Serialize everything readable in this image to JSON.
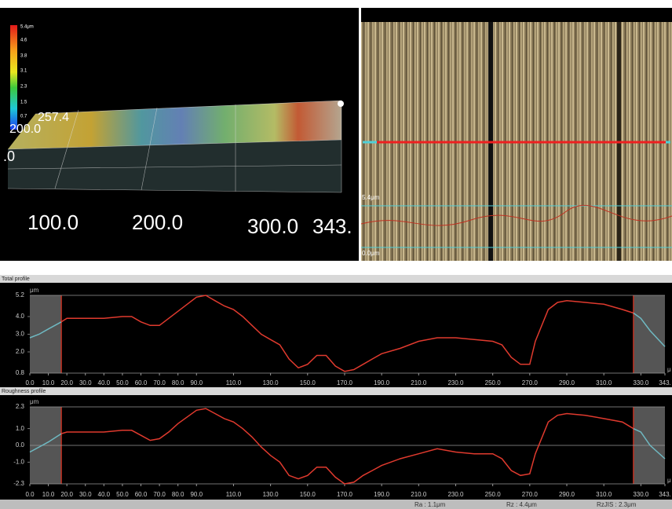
{
  "view3d": {
    "scale_labels": [
      "5.4μm",
      "4.6",
      "3.8",
      "3.1",
      "2.3",
      "1.5",
      "0.7"
    ],
    "axis_labels": [
      "257.4",
      "200.0",
      ".0",
      "100.0",
      "200.0",
      "300.0",
      "343."
    ]
  },
  "image": {
    "labels": [
      "5.4μm",
      "0.0μm"
    ]
  },
  "chart_data": [
    {
      "type": "line",
      "title": "Total profile",
      "ylabel": "μm",
      "xlabel": "μ",
      "x": [
        0,
        5,
        10,
        17,
        20,
        30,
        40,
        50,
        55,
        60,
        65,
        70,
        75,
        80,
        85,
        90,
        95,
        100,
        105,
        110,
        115,
        120,
        125,
        130,
        135,
        140,
        145,
        150,
        155,
        160,
        165,
        170,
        175,
        180,
        185,
        190,
        200,
        210,
        220,
        230,
        240,
        250,
        255,
        260,
        265,
        270,
        273,
        280,
        285,
        290,
        300,
        310,
        320,
        326,
        330,
        335,
        343
      ],
      "series": [
        {
          "color": "#e03a2e",
          "values": [
            2.8,
            3.0,
            3.3,
            3.7,
            3.9,
            3.9,
            3.9,
            4.0,
            4.0,
            3.7,
            3.5,
            3.5,
            3.9,
            4.3,
            4.7,
            5.1,
            5.2,
            4.9,
            4.6,
            4.4,
            4.0,
            3.5,
            3.0,
            2.7,
            2.4,
            1.6,
            1.1,
            1.3,
            1.8,
            1.8,
            1.2,
            0.9,
            1.0,
            1.3,
            1.6,
            1.9,
            2.2,
            2.6,
            2.8,
            2.8,
            2.7,
            2.6,
            2.4,
            1.7,
            1.3,
            1.3,
            2.6,
            4.4,
            4.8,
            4.9,
            4.8,
            4.7,
            4.4,
            4.2,
            3.9,
            3.2,
            2.3
          ]
        }
      ],
      "cutoff": [
        17,
        326
      ],
      "cutoff_color": "#6fb9c2",
      "xlim": [
        0,
        343
      ],
      "ylim": [
        0.8,
        5.2
      ],
      "yticks": [
        {
          "value": 5.2,
          "label": "5.2"
        },
        {
          "value": 4.0,
          "label": "4.0"
        },
        {
          "value": 3.0,
          "label": "3.0"
        },
        {
          "value": 2.0,
          "label": "2.0"
        },
        {
          "value": 0.8,
          "label": "0.8"
        }
      ],
      "xticks": [
        {
          "value": 0,
          "label": "0.0"
        },
        {
          "value": 10,
          "label": "10.0"
        },
        {
          "value": 20,
          "label": "20.0"
        },
        {
          "value": 30,
          "label": "30.0"
        },
        {
          "value": 40,
          "label": "40.0"
        },
        {
          "value": 50,
          "label": "50.0"
        },
        {
          "value": 60,
          "label": "60.0"
        },
        {
          "value": 70,
          "label": "70.0"
        },
        {
          "value": 80,
          "label": "80.0"
        },
        {
          "value": 90,
          "label": "90.0"
        },
        {
          "value": 110,
          "label": "110.0"
        },
        {
          "value": 130,
          "label": "130.0"
        },
        {
          "value": 150,
          "label": "150.0"
        },
        {
          "value": 170,
          "label": "170.0"
        },
        {
          "value": 190,
          "label": "190.0"
        },
        {
          "value": 210,
          "label": "210.0"
        },
        {
          "value": 230,
          "label": "230.0"
        },
        {
          "value": 250,
          "label": "250.0"
        },
        {
          "value": 270,
          "label": "270.0"
        },
        {
          "value": 290,
          "label": "290.0"
        },
        {
          "value": 310,
          "label": "310.0"
        },
        {
          "value": 330,
          "label": "330.0"
        },
        {
          "value": 343,
          "label": "343."
        }
      ]
    },
    {
      "type": "line",
      "title": "Roughness profile",
      "ylabel": "μm",
      "xlabel": "μ",
      "x": [
        0,
        5,
        10,
        17,
        20,
        30,
        40,
        50,
        55,
        60,
        65,
        70,
        75,
        80,
        85,
        90,
        95,
        100,
        105,
        110,
        115,
        120,
        125,
        130,
        135,
        140,
        145,
        150,
        155,
        160,
        165,
        170,
        175,
        180,
        185,
        190,
        200,
        210,
        220,
        230,
        240,
        250,
        255,
        260,
        265,
        270,
        273,
        280,
        285,
        290,
        300,
        310,
        320,
        326,
        330,
        335,
        343
      ],
      "series": [
        {
          "color": "#e03a2e",
          "values": [
            -0.4,
            -0.1,
            0.2,
            0.7,
            0.8,
            0.8,
            0.8,
            0.9,
            0.9,
            0.6,
            0.3,
            0.4,
            0.8,
            1.3,
            1.7,
            2.1,
            2.2,
            1.9,
            1.6,
            1.4,
            1.0,
            0.5,
            -0.1,
            -0.6,
            -1.0,
            -1.8,
            -2.0,
            -1.8,
            -1.3,
            -1.3,
            -1.9,
            -2.3,
            -2.2,
            -1.8,
            -1.5,
            -1.2,
            -0.8,
            -0.5,
            -0.2,
            -0.4,
            -0.5,
            -0.5,
            -0.8,
            -1.5,
            -1.8,
            -1.7,
            -0.5,
            1.4,
            1.8,
            1.9,
            1.8,
            1.6,
            1.4,
            1.0,
            0.8,
            0.0,
            -0.8
          ]
        }
      ],
      "cutoff": [
        17,
        326
      ],
      "cutoff_color": "#6fb9c2",
      "xlim": [
        0,
        343
      ],
      "ylim": [
        -2.3,
        2.3
      ],
      "yticks": [
        {
          "value": 2.3,
          "label": "2.3"
        },
        {
          "value": 1.0,
          "label": "1.0"
        },
        {
          "value": 0,
          "label": "0.0"
        },
        {
          "value": -1.0,
          "label": "-1.0"
        },
        {
          "value": -2.3,
          "label": "-2.3"
        }
      ],
      "xticks": [
        {
          "value": 0,
          "label": "0.0"
        },
        {
          "value": 10,
          "label": "10.0"
        },
        {
          "value": 20,
          "label": "20.0"
        },
        {
          "value": 30,
          "label": "30.0"
        },
        {
          "value": 40,
          "label": "40.0"
        },
        {
          "value": 50,
          "label": "50.0"
        },
        {
          "value": 60,
          "label": "60.0"
        },
        {
          "value": 70,
          "label": "70.0"
        },
        {
          "value": 80,
          "label": "80.0"
        },
        {
          "value": 90,
          "label": "90.0"
        },
        {
          "value": 110,
          "label": "110.0"
        },
        {
          "value": 130,
          "label": "130.0"
        },
        {
          "value": 150,
          "label": "150.0"
        },
        {
          "value": 170,
          "label": "170.0"
        },
        {
          "value": 190,
          "label": "190.0"
        },
        {
          "value": 210,
          "label": "210.0"
        },
        {
          "value": 230,
          "label": "230.0"
        },
        {
          "value": 250,
          "label": "250.0"
        },
        {
          "value": 270,
          "label": "270.0"
        },
        {
          "value": 290,
          "label": "290.0"
        },
        {
          "value": 310,
          "label": "310.0"
        },
        {
          "value": 330,
          "label": "330.0"
        },
        {
          "value": 343,
          "label": "343."
        }
      ]
    }
  ],
  "footer": {
    "ra": "Ra : 1.1μm",
    "rz": "Rz : 4.4μm",
    "rzjis": "RzJIS : 2.3μm"
  }
}
